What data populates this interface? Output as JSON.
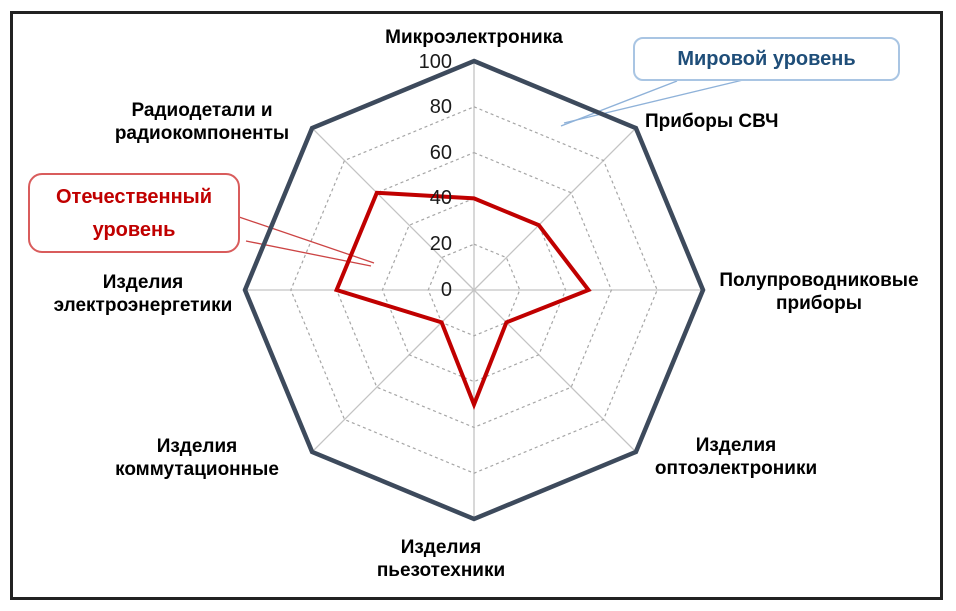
{
  "chart_data": {
    "type": "radar",
    "axes": [
      "Микроэлектроника",
      "Приборы СВЧ",
      "Полупроводниковые\nприборы",
      "Изделия\nоптоэлектроники",
      "Изделия\nпьезотехники",
      "Изделия\nкоммутационные",
      "Изделия\nэлектроэнергетики",
      "Радиодетали и\nрадиокомпоненты"
    ],
    "tick_labels": [
      "100",
      "80",
      "60",
      "40",
      "20",
      "0"
    ],
    "axis_range": [
      0,
      100
    ],
    "grid_levels": [
      20,
      40,
      60,
      80
    ],
    "grid_on": true,
    "series": [
      {
        "name": "Мировой уровень",
        "values": [
          100,
          100,
          100,
          100,
          100,
          100,
          100,
          100
        ],
        "color": "#3d4a5c"
      },
      {
        "name": "Отечественный уровень",
        "values": [
          40,
          40,
          50,
          20,
          50,
          20,
          60,
          60
        ],
        "color": "#c00000"
      }
    ],
    "legend_position": "callouts"
  },
  "callouts": {
    "world": {
      "label": "Мировой уровень",
      "text_color": "#1f4e79",
      "border_color": "#a9c5e3"
    },
    "domestic": {
      "label": "Отечественный\nуровень",
      "text_color": "#c00000",
      "border_color": "#d95c5c"
    }
  },
  "colors": {
    "world_series": "#3d4a5c",
    "domestic_series": "#c00000",
    "grid_ring": "#a6a6a6",
    "spoke": "#c4c4c4",
    "frame": "#222222",
    "world_leader_line": "#8fb2d9",
    "domestic_leader_line": "#cc4444"
  }
}
